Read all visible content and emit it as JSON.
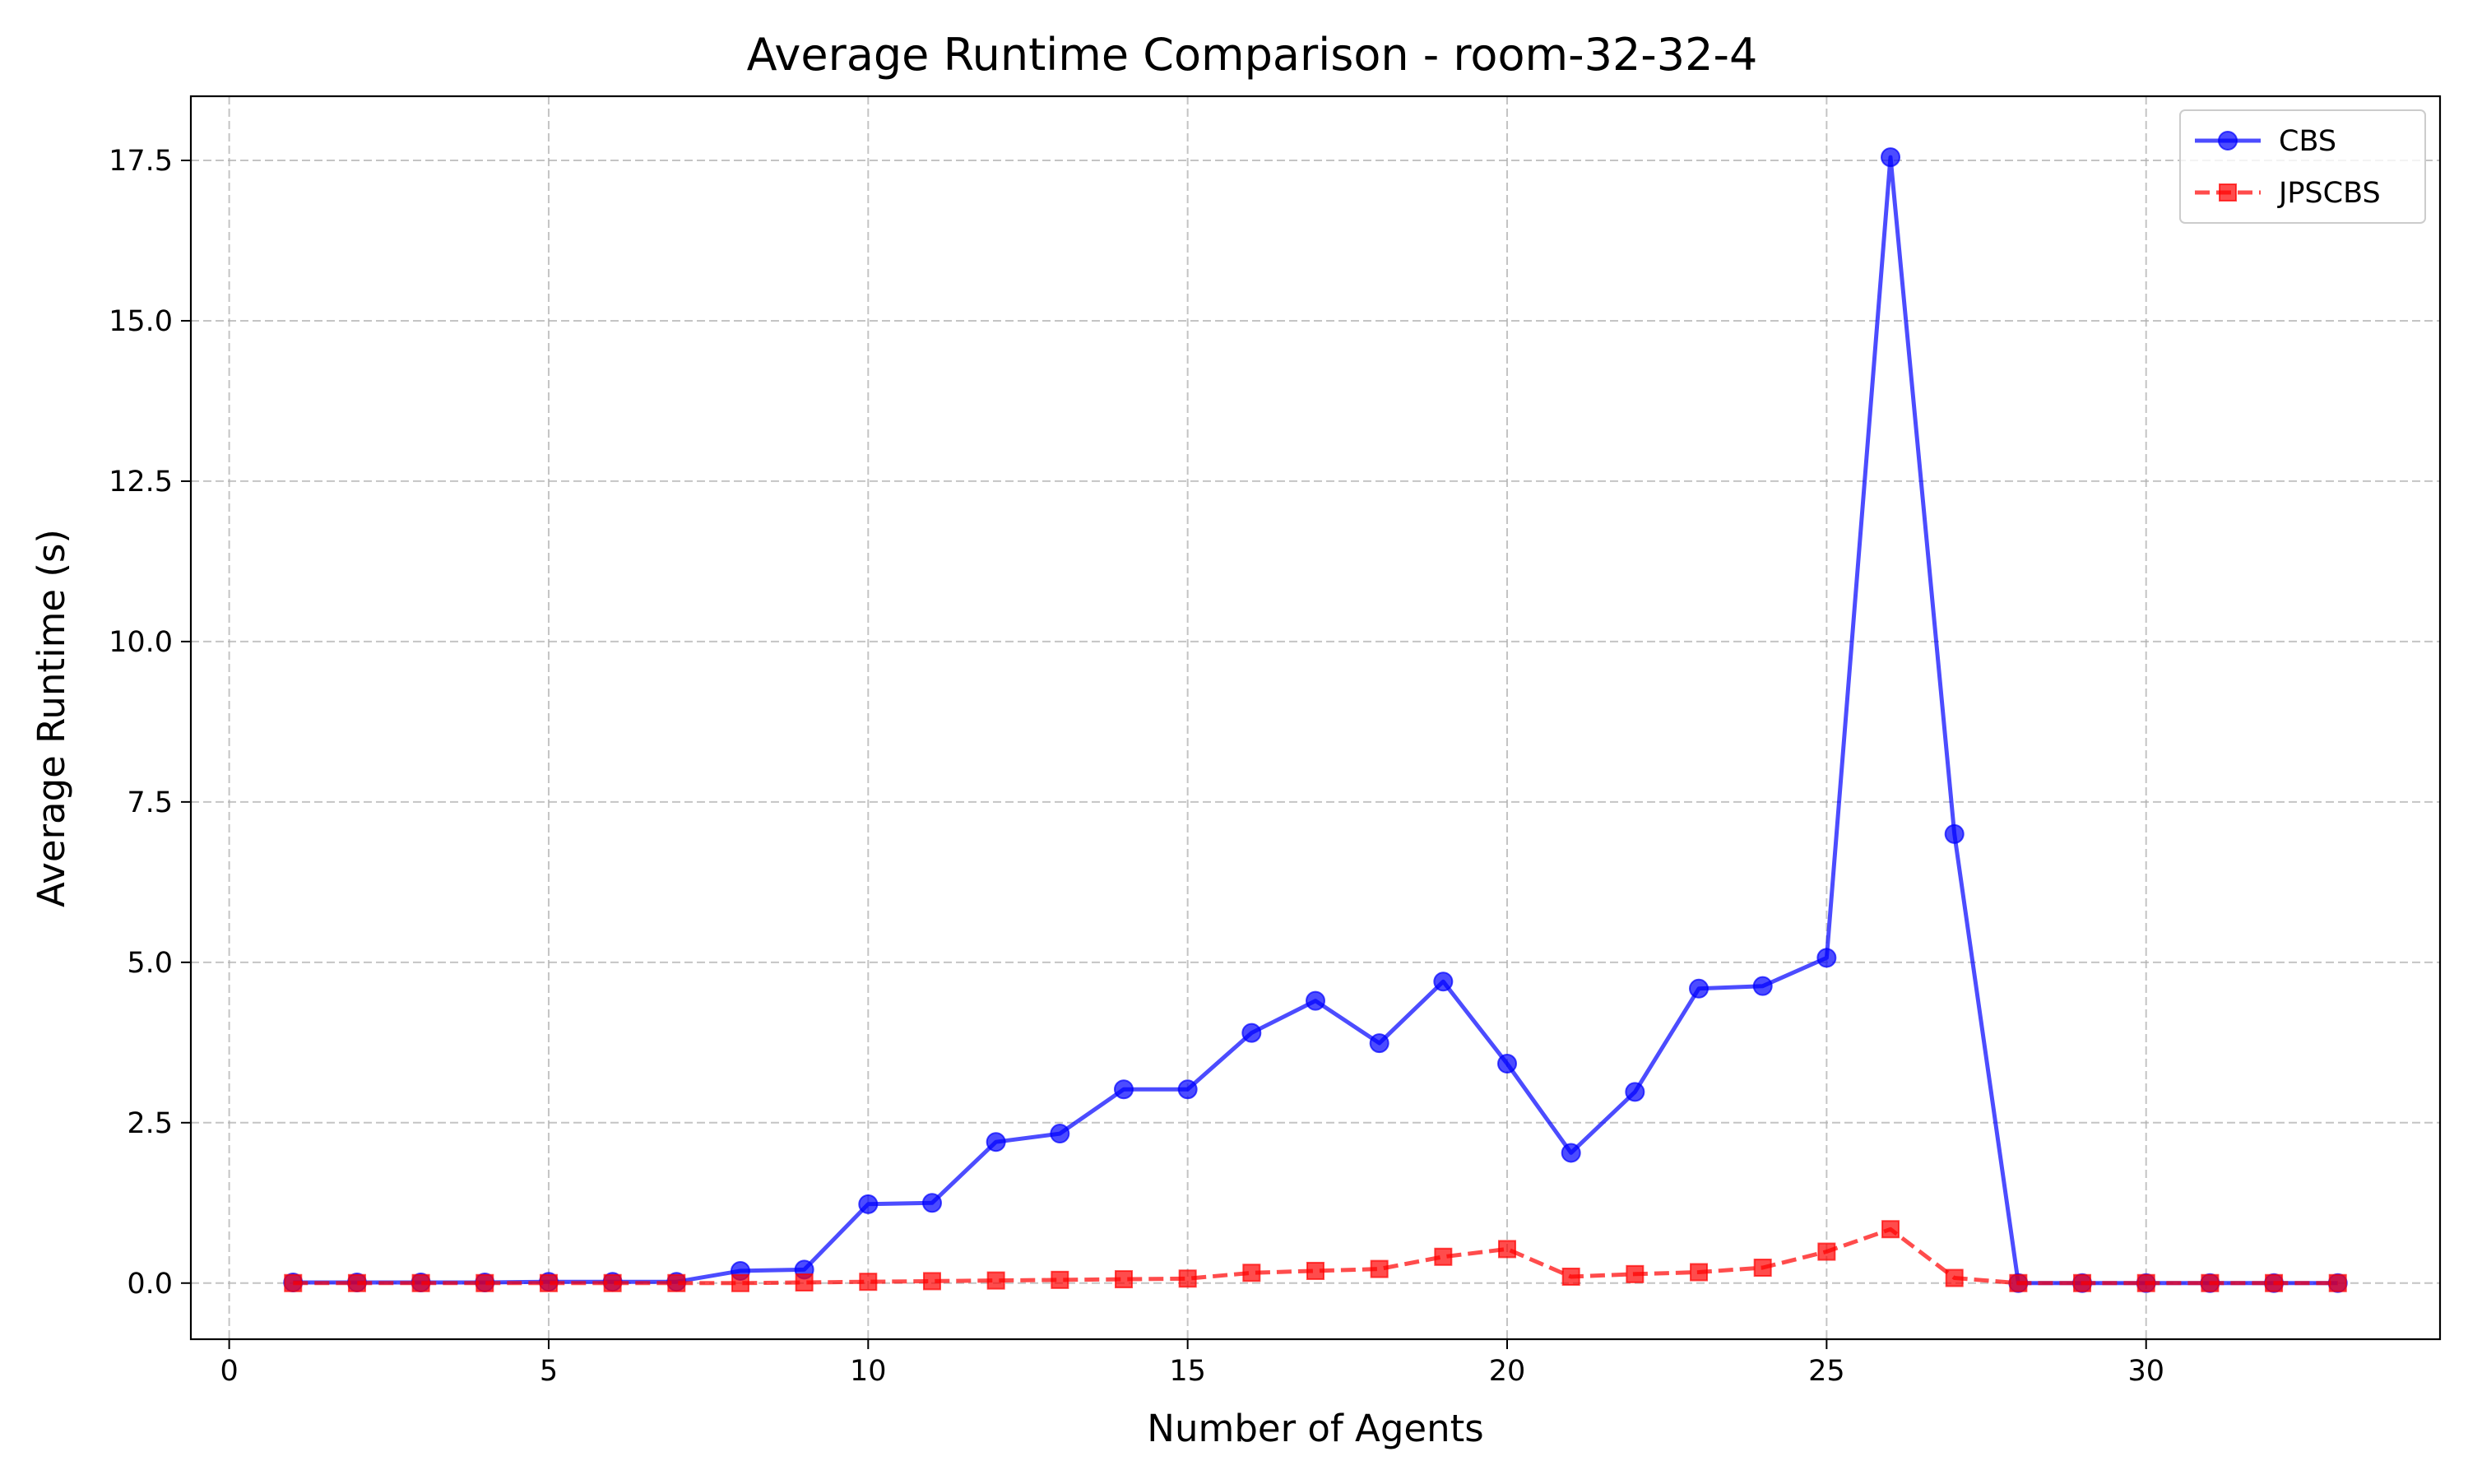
{
  "chart_data": {
    "type": "line",
    "title": "Average Runtime Comparison - room-32-32-4",
    "xlabel": "Number of Agents",
    "ylabel": "Average Runtime (s)",
    "xlim": [
      -0.6,
      34.6
    ],
    "ylim": [
      -0.875,
      18.5
    ],
    "xticks": [
      0,
      5,
      10,
      15,
      20,
      25,
      30
    ],
    "xtick_labels": [
      "0",
      "5",
      "10",
      "15",
      "20",
      "25",
      "30"
    ],
    "yticks": [
      0,
      2.5,
      5,
      7.5,
      10,
      12.5,
      15,
      17.5
    ],
    "ytick_labels": [
      "0.0",
      "2.5",
      "5.0",
      "7.5",
      "10.0",
      "12.5",
      "15.0",
      "17.5"
    ],
    "grid": true,
    "legend_position": "top-right",
    "x": [
      1,
      2,
      3,
      4,
      5,
      6,
      7,
      8,
      9,
      10,
      11,
      12,
      13,
      14,
      15,
      16,
      17,
      18,
      19,
      20,
      21,
      22,
      23,
      24,
      25,
      26,
      27,
      28,
      29,
      30,
      31,
      32,
      33
    ],
    "series": [
      {
        "name": "CBS",
        "color": "#0000ff",
        "linestyle": "solid",
        "marker": "circle",
        "values": [
          0.01,
          0.01,
          0.01,
          0.01,
          0.02,
          0.02,
          0.02,
          0.19,
          0.21,
          1.23,
          1.25,
          2.2,
          2.33,
          3.02,
          3.02,
          3.9,
          4.4,
          3.74,
          4.7,
          3.42,
          2.03,
          2.98,
          4.59,
          4.63,
          5.07,
          17.55,
          7.0,
          0.0,
          0.0,
          0.0,
          0.0,
          0.0,
          0.0
        ]
      },
      {
        "name": "JPSCBS",
        "color": "#ff0000",
        "linestyle": "dashed",
        "marker": "square",
        "values": [
          0.0,
          0.0,
          0.0,
          0.0,
          0.0,
          0.0,
          0.0,
          0.0,
          0.01,
          0.02,
          0.03,
          0.04,
          0.05,
          0.06,
          0.07,
          0.16,
          0.19,
          0.22,
          0.41,
          0.53,
          0.1,
          0.14,
          0.17,
          0.24,
          0.49,
          0.84,
          0.08,
          0.0,
          0.0,
          0.0,
          0.0,
          0.0,
          0.0
        ]
      }
    ]
  }
}
